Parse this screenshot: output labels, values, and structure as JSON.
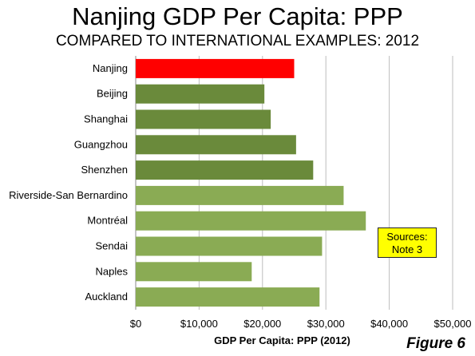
{
  "title": "Nanjing GDP Per Capita: PPP",
  "subtitle": "COMPARED TO INTERNATIONAL EXAMPLES: 2012",
  "figure_label": "Figure 6",
  "sources_note": {
    "line1": "Sources:",
    "line2": "Note 3"
  },
  "colors": {
    "highlight": "#ff0000",
    "china": "#6a8a3b",
    "international": "#8aab54",
    "grid": "#bdbdbd",
    "note_bg": "#ffff00"
  },
  "chart_data": {
    "type": "bar",
    "orientation": "horizontal",
    "categories": [
      "Nanjing",
      "Beijing",
      "Shanghai",
      "Guangzhou",
      "Shenzhen",
      "Riverside-San Bernardino",
      "Montréal",
      "Sendai",
      "Naples",
      "Auckland"
    ],
    "values": [
      25000,
      20300,
      21300,
      25300,
      28000,
      32800,
      36300,
      29400,
      18300,
      29000
    ],
    "groups": [
      "highlight",
      "china",
      "china",
      "china",
      "china",
      "international",
      "international",
      "international",
      "international",
      "international"
    ],
    "xlabel": "GDP Per Capita: PPP (2012)",
    "xlim": [
      0,
      50000
    ],
    "xticks": [
      0,
      10000,
      20000,
      30000,
      40000,
      50000
    ],
    "xtick_labels": [
      "$0",
      "$10,000",
      "$20,000",
      "$30,000",
      "$40,000",
      "$50,000"
    ],
    "grid": true
  }
}
